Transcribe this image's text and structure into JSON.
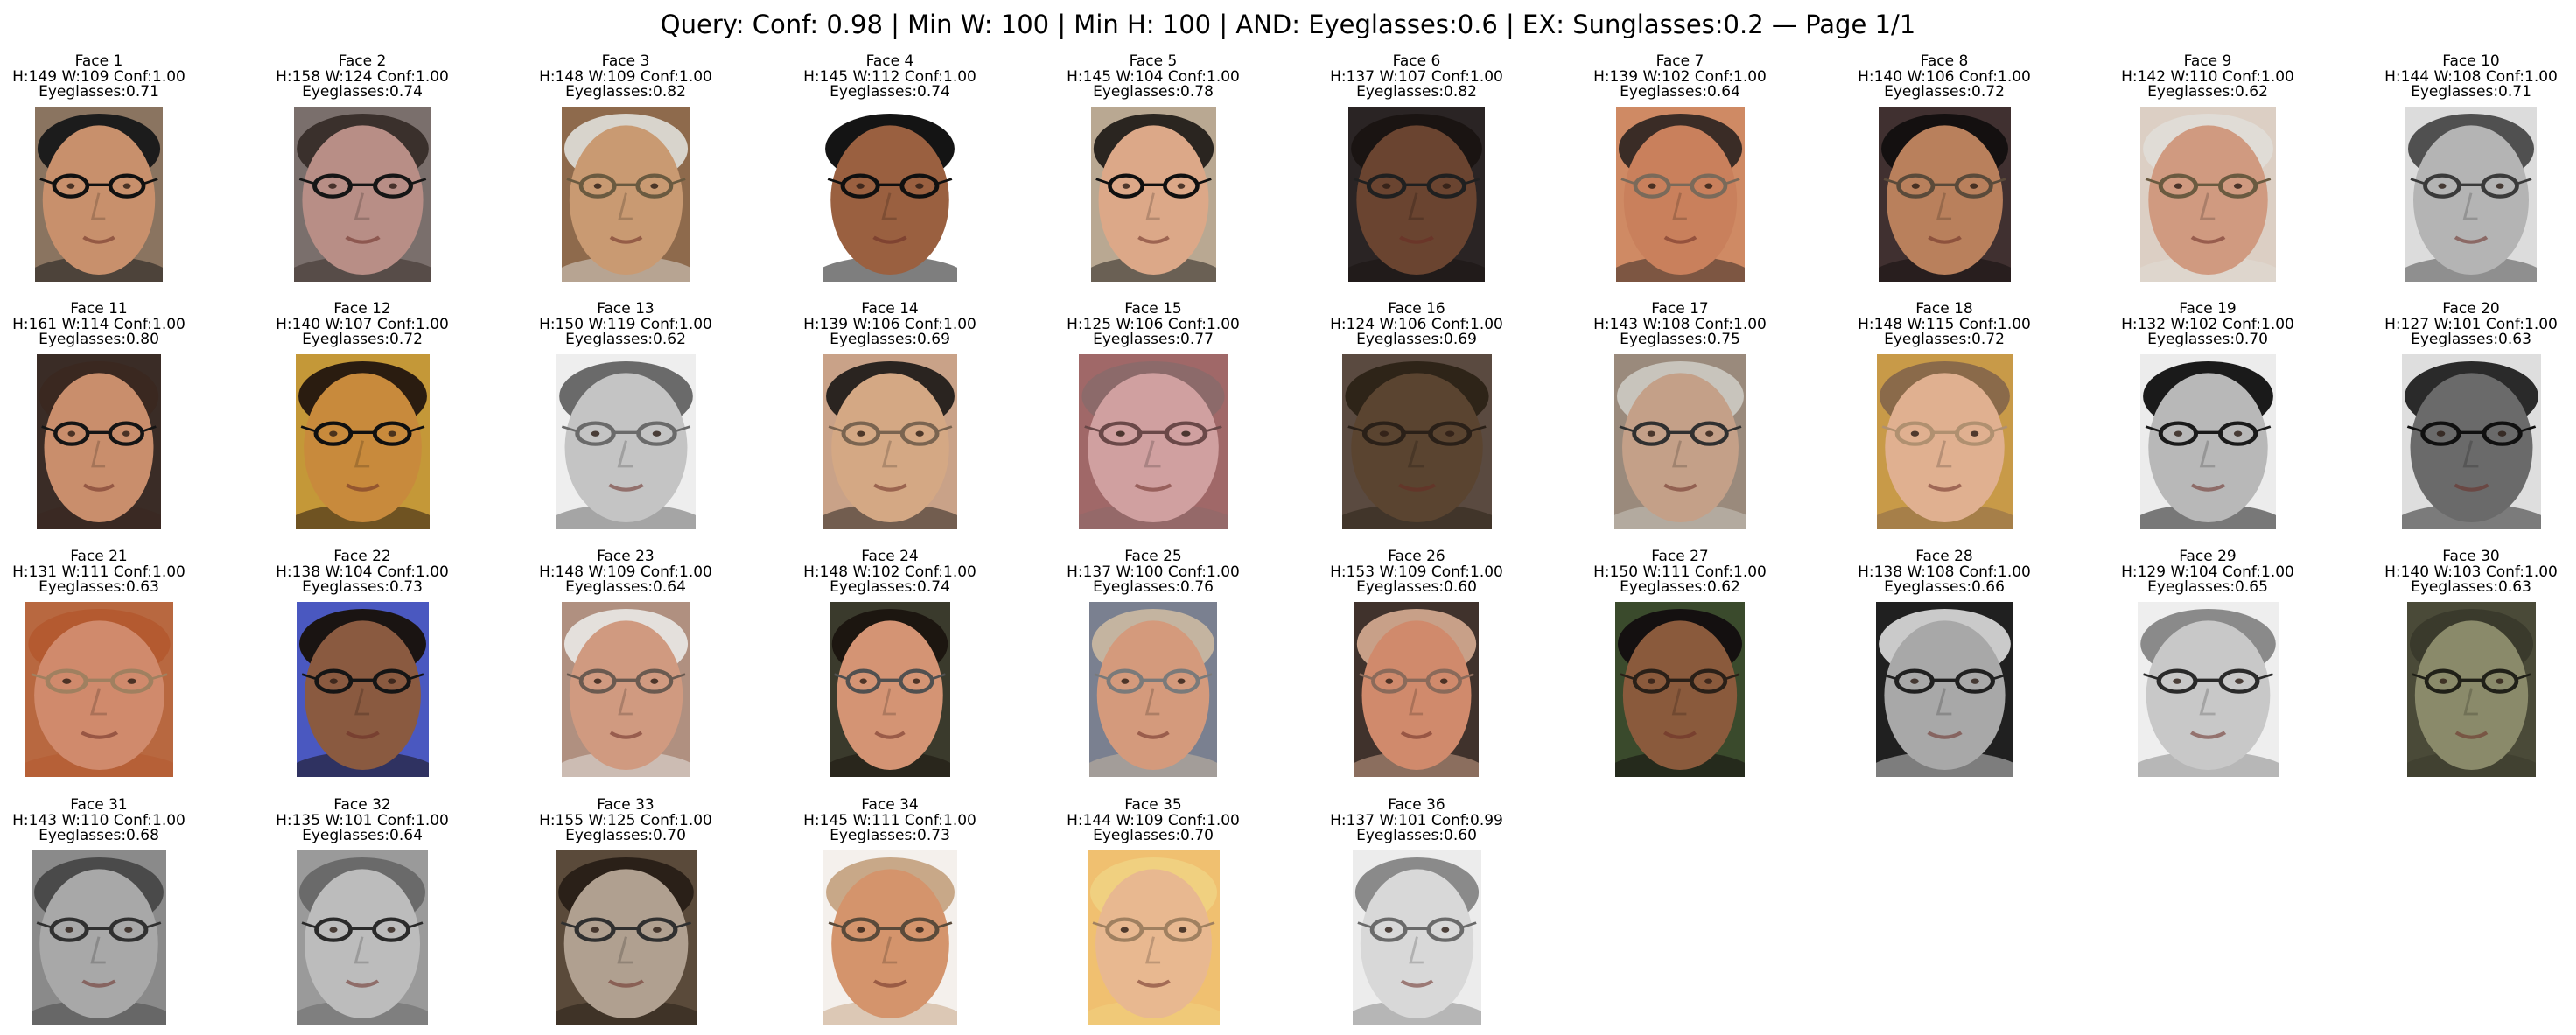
{
  "title": "Query: Conf: 0.98 | Min W: 100 | Min H: 100 | AND: Eyeglasses:0.6 | EX: Sunglasses:0.2 — Page 1/1",
  "faces": [
    {
      "label": "Face 1",
      "stats": "H:149 W:109 Conf:1.00",
      "attr": "Eyeglasses:0.71",
      "h": 149,
      "w": 109,
      "skin": "#c8906c",
      "bg": "#8a7460",
      "hair": "#1c1c1c",
      "glass": "#111111"
    },
    {
      "label": "Face 2",
      "stats": "H:158 W:124 Conf:1.00",
      "attr": "Eyeglasses:0.74",
      "h": 158,
      "w": 124,
      "skin": "#b88e86",
      "bg": "#7a6f6c",
      "hair": "#3a302c",
      "glass": "#161616"
    },
    {
      "label": "Face 3",
      "stats": "H:148 W:109 Conf:1.00",
      "attr": "Eyeglasses:0.82",
      "h": 148,
      "w": 109,
      "skin": "#c99a72",
      "bg": "#8e6a4c",
      "hair": "#d8d4cc",
      "glass": "#6a5a40"
    },
    {
      "label": "Face 4",
      "stats": "H:145 W:112 Conf:1.00",
      "attr": "Eyeglasses:0.74",
      "h": 145,
      "w": 112,
      "skin": "#9a6040",
      "bg": "#ffffff",
      "hair": "#141414",
      "glass": "#101010"
    },
    {
      "label": "Face 5",
      "stats": "H:145 W:104 Conf:1.00",
      "attr": "Eyeglasses:0.78",
      "h": 145,
      "w": 104,
      "skin": "#dca888",
      "bg": "#b9a892",
      "hair": "#2a2520",
      "glass": "#101010"
    },
    {
      "label": "Face 6",
      "stats": "H:137 W:107 Conf:1.00",
      "attr": "Eyeglasses:0.82",
      "h": 137,
      "w": 107,
      "skin": "#6a4430",
      "bg": "#2a2424",
      "hair": "#1a1412",
      "glass": "#202020"
    },
    {
      "label": "Face 7",
      "stats": "H:139 W:102 Conf:1.00",
      "attr": "Eyeglasses:0.64",
      "h": 139,
      "w": 102,
      "skin": "#c9805c",
      "bg": "#cf8a64",
      "hair": "#3a2c26",
      "glass": "#7a6a5a"
    },
    {
      "label": "Face 8",
      "stats": "H:140 W:106 Conf:1.00",
      "attr": "Eyeglasses:0.72",
      "h": 140,
      "w": 106,
      "skin": "#b9805c",
      "bg": "#403030",
      "hair": "#141010",
      "glass": "#5a4a3a"
    },
    {
      "label": "Face 9",
      "stats": "H:142 W:110 Conf:1.00",
      "attr": "Eyeglasses:0.62",
      "h": 142,
      "w": 110,
      "skin": "#d09a80",
      "bg": "#dccfc4",
      "hair": "#e0dcd6",
      "glass": "#6a5a40"
    },
    {
      "label": "Face 10",
      "stats": "H:144 W:108 Conf:1.00",
      "attr": "Eyeglasses:0.71",
      "h": 144,
      "w": 108,
      "skin": "#b4b4b4",
      "bg": "#dcdcdc",
      "hair": "#505050",
      "glass": "#3a3a3a"
    },
    {
      "label": "Face 11",
      "stats": "H:161 W:114 Conf:1.00",
      "attr": "Eyeglasses:0.80",
      "h": 161,
      "w": 114,
      "skin": "#c98e6c",
      "bg": "#3a2c26",
      "hair": "#3a2820",
      "glass": "#151515"
    },
    {
      "label": "Face 12",
      "stats": "H:140 W:107 Conf:1.00",
      "attr": "Eyeglasses:0.72",
      "h": 140,
      "w": 107,
      "skin": "#c88a3c",
      "bg": "#c49838",
      "hair": "#2a1c10",
      "glass": "#101010"
    },
    {
      "label": "Face 13",
      "stats": "H:150 W:119 Conf:1.00",
      "attr": "Eyeglasses:0.62",
      "h": 150,
      "w": 119,
      "skin": "#c4c4c4",
      "bg": "#eeeeee",
      "hair": "#6a6a6a",
      "glass": "#6a6a6a"
    },
    {
      "label": "Face 14",
      "stats": "H:139 W:106 Conf:1.00",
      "attr": "Eyeglasses:0.69",
      "h": 139,
      "w": 106,
      "skin": "#d4a884",
      "bg": "#c9a288",
      "hair": "#2a2420",
      "glass": "#7a6450"
    },
    {
      "label": "Face 15",
      "stats": "H:125 W:106 Conf:1.00",
      "attr": "Eyeglasses:0.77",
      "h": 125,
      "w": 106,
      "skin": "#d0a0a0",
      "bg": "#a06868",
      "hair": "#8c6a6a",
      "glass": "#6a4848"
    },
    {
      "label": "Face 16",
      "stats": "H:124 W:106 Conf:1.00",
      "attr": "Eyeglasses:0.69",
      "h": 124,
      "w": 106,
      "skin": "#5a4430",
      "bg": "#5a4a40",
      "hair": "#2e2418",
      "glass": "#2a2018"
    },
    {
      "label": "Face 17",
      "stats": "H:143 W:108 Conf:1.00",
      "attr": "Eyeglasses:0.75",
      "h": 143,
      "w": 108,
      "skin": "#c4a088",
      "bg": "#9a8a7c",
      "hair": "#c8c4bc",
      "glass": "#303030"
    },
    {
      "label": "Face 18",
      "stats": "H:148 W:115 Conf:1.00",
      "attr": "Eyeglasses:0.72",
      "h": 148,
      "w": 115,
      "skin": "#e0b090",
      "bg": "#c89a48",
      "hair": "#8a6a4a",
      "glass": "#b09070"
    },
    {
      "label": "Face 19",
      "stats": "H:132 W:102 Conf:1.00",
      "attr": "Eyeglasses:0.70",
      "h": 132,
      "w": 102,
      "skin": "#b8b8b8",
      "bg": "#ececec",
      "hair": "#1a1a1a",
      "glass": "#1a1a1a"
    },
    {
      "label": "Face 20",
      "stats": "H:127 W:101 Conf:1.00",
      "attr": "Eyeglasses:0.63",
      "h": 127,
      "w": 101,
      "skin": "#6a6a6a",
      "bg": "#dedede",
      "hair": "#2a2a2a",
      "glass": "#101010"
    },
    {
      "label": "Face 21",
      "stats": "H:131 W:111 Conf:1.00",
      "attr": "Eyeglasses:0.63",
      "h": 131,
      "w": 111,
      "skin": "#d08a6c",
      "bg": "#b86840",
      "hair": "#b45a30",
      "glass": "#a08060"
    },
    {
      "label": "Face 22",
      "stats": "H:138 W:104 Conf:1.00",
      "attr": "Eyeglasses:0.73",
      "h": 138,
      "w": 104,
      "skin": "#8a5a40",
      "bg": "#4a58c0",
      "hair": "#1a1412",
      "glass": "#151515"
    },
    {
      "label": "Face 23",
      "stats": "H:148 W:109 Conf:1.00",
      "attr": "Eyeglasses:0.64",
      "h": 148,
      "w": 109,
      "skin": "#d09a80",
      "bg": "#b09080",
      "hair": "#e4e0dc",
      "glass": "#6a5a50"
    },
    {
      "label": "Face 24",
      "stats": "H:148 W:102 Conf:1.00",
      "attr": "Eyeglasses:0.74",
      "h": 148,
      "w": 102,
      "skin": "#d49474",
      "bg": "#3a3a2c",
      "hair": "#1c1610",
      "glass": "#505050"
    },
    {
      "label": "Face 25",
      "stats": "H:137 W:100 Conf:1.00",
      "attr": "Eyeglasses:0.76",
      "h": 137,
      "w": 100,
      "skin": "#d49a7c",
      "bg": "#7a8090",
      "hair": "#c4b4a0",
      "glass": "#7a7a7a"
    },
    {
      "label": "Face 26",
      "stats": "H:153 W:109 Conf:1.00",
      "attr": "Eyeglasses:0.60",
      "h": 153,
      "w": 109,
      "skin": "#d08a6c",
      "bg": "#40322c",
      "hair": "#c8a088",
      "glass": "#8a6a5a"
    },
    {
      "label": "Face 27",
      "stats": "H:150 W:111 Conf:1.00",
      "attr": "Eyeglasses:0.62",
      "h": 150,
      "w": 111,
      "skin": "#8a5a3c",
      "bg": "#3a4a2c",
      "hair": "#141010",
      "glass": "#2a2018"
    },
    {
      "label": "Face 28",
      "stats": "H:138 W:108 Conf:1.00",
      "attr": "Eyeglasses:0.66",
      "h": 138,
      "w": 108,
      "skin": "#a8a8a8",
      "bg": "#202020",
      "hair": "#cacaca",
      "glass": "#202020"
    },
    {
      "label": "Face 29",
      "stats": "H:129 W:104 Conf:1.00",
      "attr": "Eyeglasses:0.65",
      "h": 129,
      "w": 104,
      "skin": "#c8c8c8",
      "bg": "#eeeeee",
      "hair": "#8a8a8a",
      "glass": "#2a2a2a"
    },
    {
      "label": "Face 30",
      "stats": "H:140 W:103 Conf:1.00",
      "attr": "Eyeglasses:0.63",
      "h": 140,
      "w": 103,
      "skin": "#8a8a6a",
      "bg": "#4a4a38",
      "hair": "#3a3a2c",
      "glass": "#202018"
    },
    {
      "label": "Face 31",
      "stats": "H:143 W:110 Conf:1.00",
      "attr": "Eyeglasses:0.68",
      "h": 143,
      "w": 110,
      "skin": "#a8a8a8",
      "bg": "#8a8a8a",
      "hair": "#4a4a4a",
      "glass": "#303030"
    },
    {
      "label": "Face 32",
      "stats": "H:135 W:101 Conf:1.00",
      "attr": "Eyeglasses:0.64",
      "h": 135,
      "w": 101,
      "skin": "#bcbcbc",
      "bg": "#9a9a9a",
      "hair": "#6a6a6a",
      "glass": "#2a2a2a"
    },
    {
      "label": "Face 33",
      "stats": "H:155 W:125 Conf:1.00",
      "attr": "Eyeglasses:0.70",
      "h": 155,
      "w": 125,
      "skin": "#b0a090",
      "bg": "#5a4a3a",
      "hair": "#2a2018",
      "glass": "#303030"
    },
    {
      "label": "Face 34",
      "stats": "H:145 W:111 Conf:1.00",
      "attr": "Eyeglasses:0.73",
      "h": 145,
      "w": 111,
      "skin": "#d4946c",
      "bg": "#f4f0ec",
      "hair": "#c8a888",
      "glass": "#5a4a3a"
    },
    {
      "label": "Face 35",
      "stats": "H:144 W:109 Conf:1.00",
      "attr": "Eyeglasses:0.70",
      "h": 144,
      "w": 109,
      "skin": "#e8b890",
      "bg": "#f0c070",
      "hair": "#f0d080",
      "glass": "#a08060"
    },
    {
      "label": "Face 36",
      "stats": "H:137 W:101 Conf:0.99",
      "attr": "Eyeglasses:0.60",
      "h": 137,
      "w": 101,
      "skin": "#d8d8d8",
      "bg": "#ececec",
      "hair": "#8a8a8a",
      "glass": "#6a6a6a"
    }
  ]
}
